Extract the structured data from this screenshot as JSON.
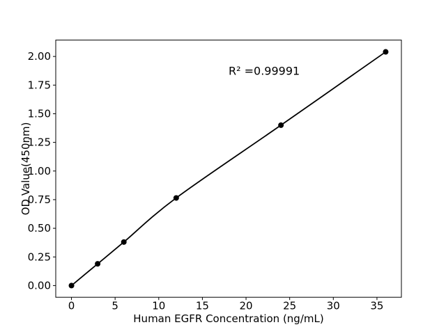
{
  "chart_data": {
    "type": "line",
    "title": "",
    "xlabel": "Human EGFR Concentration (ng/mL)",
    "ylabel": "OD Value(450nm)",
    "annotation": {
      "text": "R² =0.99991",
      "x": 18,
      "y": 1.84
    },
    "x": [
      0,
      3,
      6,
      12,
      24,
      36
    ],
    "y": [
      0.0,
      0.19,
      0.38,
      0.765,
      1.4,
      2.04
    ],
    "xlim": [
      -1.8,
      37.8
    ],
    "ylim": [
      -0.102,
      2.143
    ],
    "xticks": [
      0,
      5,
      10,
      15,
      20,
      25,
      30,
      35
    ],
    "xtick_labels": [
      "0",
      "5",
      "10",
      "15",
      "20",
      "25",
      "30",
      "35"
    ],
    "yticks": [
      0,
      0.25,
      0.5,
      0.75,
      1.0,
      1.25,
      1.5,
      1.75,
      2.0
    ],
    "ytick_labels": [
      "0.00",
      "0.25",
      "0.50",
      "0.75",
      "1.00",
      "1.25",
      "1.50",
      "1.75",
      "2.00"
    ],
    "grid": false,
    "legend": "none",
    "line_color": "#000000",
    "marker": "circle",
    "marker_color": "#000000",
    "axes_color": "#000000",
    "background_color": "#ffffff"
  }
}
